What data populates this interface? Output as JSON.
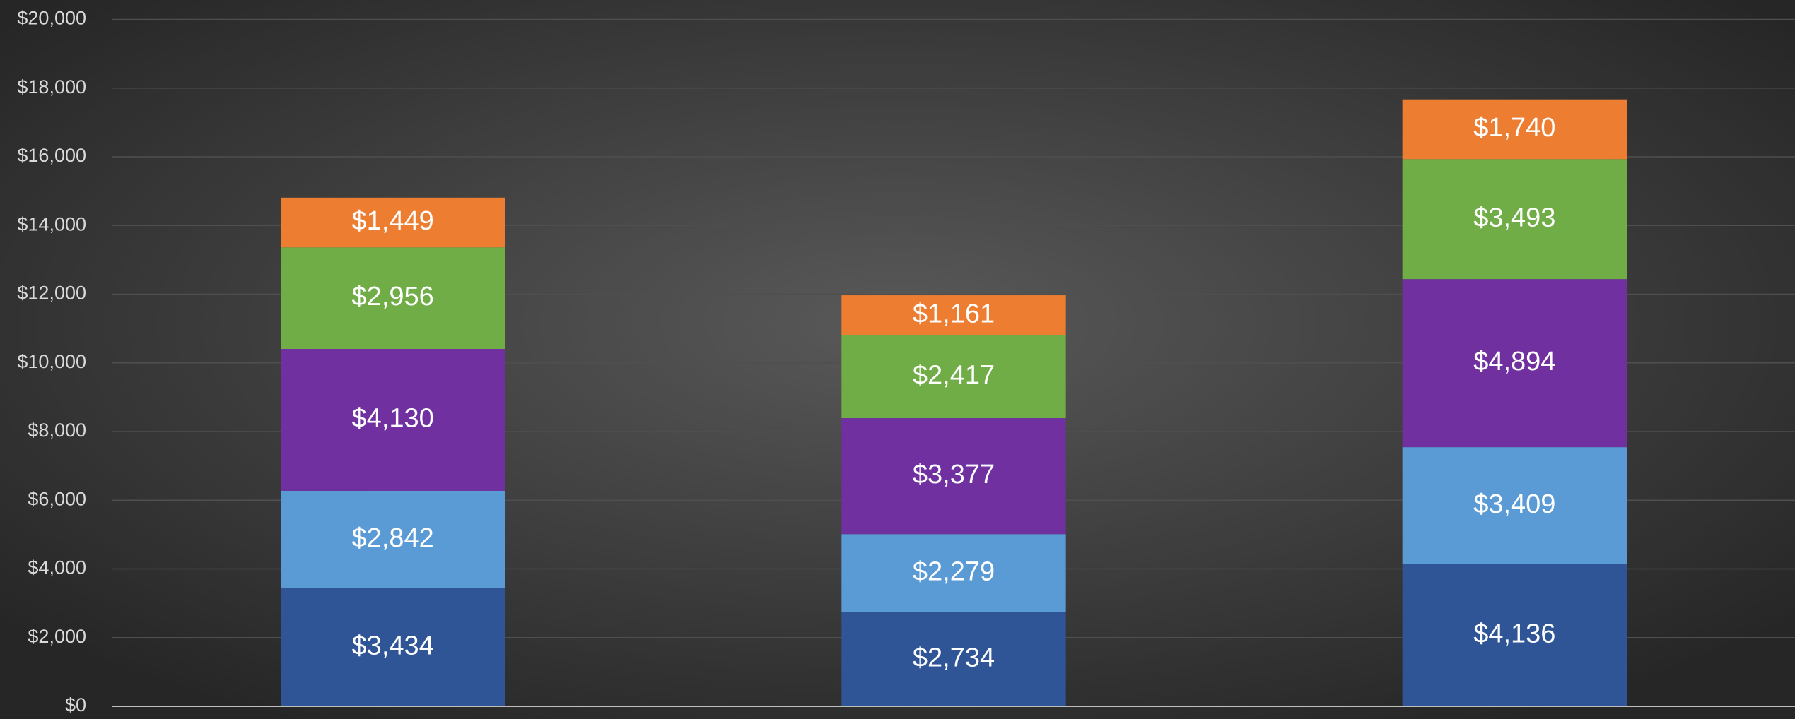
{
  "chart_data": {
    "type": "stacked_bar",
    "categories": [
      null,
      null,
      null
    ],
    "series": [
      {
        "color": "#2f5597",
        "values": [
          3434,
          2734,
          4136
        ],
        "value_labels": [
          "$3,434",
          "$2,734",
          "$4,136"
        ]
      },
      {
        "color": "#5b9bd5",
        "values": [
          2842,
          2279,
          3409
        ],
        "value_labels": [
          "$2,842",
          "$2,279",
          "$3,409"
        ]
      },
      {
        "color": "#7030a0",
        "values": [
          4130,
          3377,
          4894
        ],
        "value_labels": [
          "$4,130",
          "$3,377",
          "$4,894"
        ]
      },
      {
        "color": "#70ad47",
        "values": [
          2956,
          2417,
          3493
        ],
        "value_labels": [
          "$2,956",
          "$2,417",
          "$3,493"
        ]
      },
      {
        "color": "#ed7d31",
        "values": [
          1449,
          1161,
          1740
        ],
        "value_labels": [
          "$1,449",
          "$1,161",
          "$1,740"
        ]
      }
    ],
    "ylim": [
      0,
      20000
    ],
    "yticks": [
      {
        "value": 0,
        "label": "$0"
      },
      {
        "value": 2000,
        "label": "$2,000"
      },
      {
        "value": 4000,
        "label": "$4,000"
      },
      {
        "value": 6000,
        "label": "$6,000"
      },
      {
        "value": 8000,
        "label": "$8,000"
      },
      {
        "value": 10000,
        "label": "$10,000"
      },
      {
        "value": 12000,
        "label": "$12,000"
      },
      {
        "value": 14000,
        "label": "$14,000"
      },
      {
        "value": 16000,
        "label": "$16,000"
      },
      {
        "value": 18000,
        "label": "$18,000"
      },
      {
        "value": 20000,
        "label": "$20,000"
      }
    ],
    "grid": true
  }
}
